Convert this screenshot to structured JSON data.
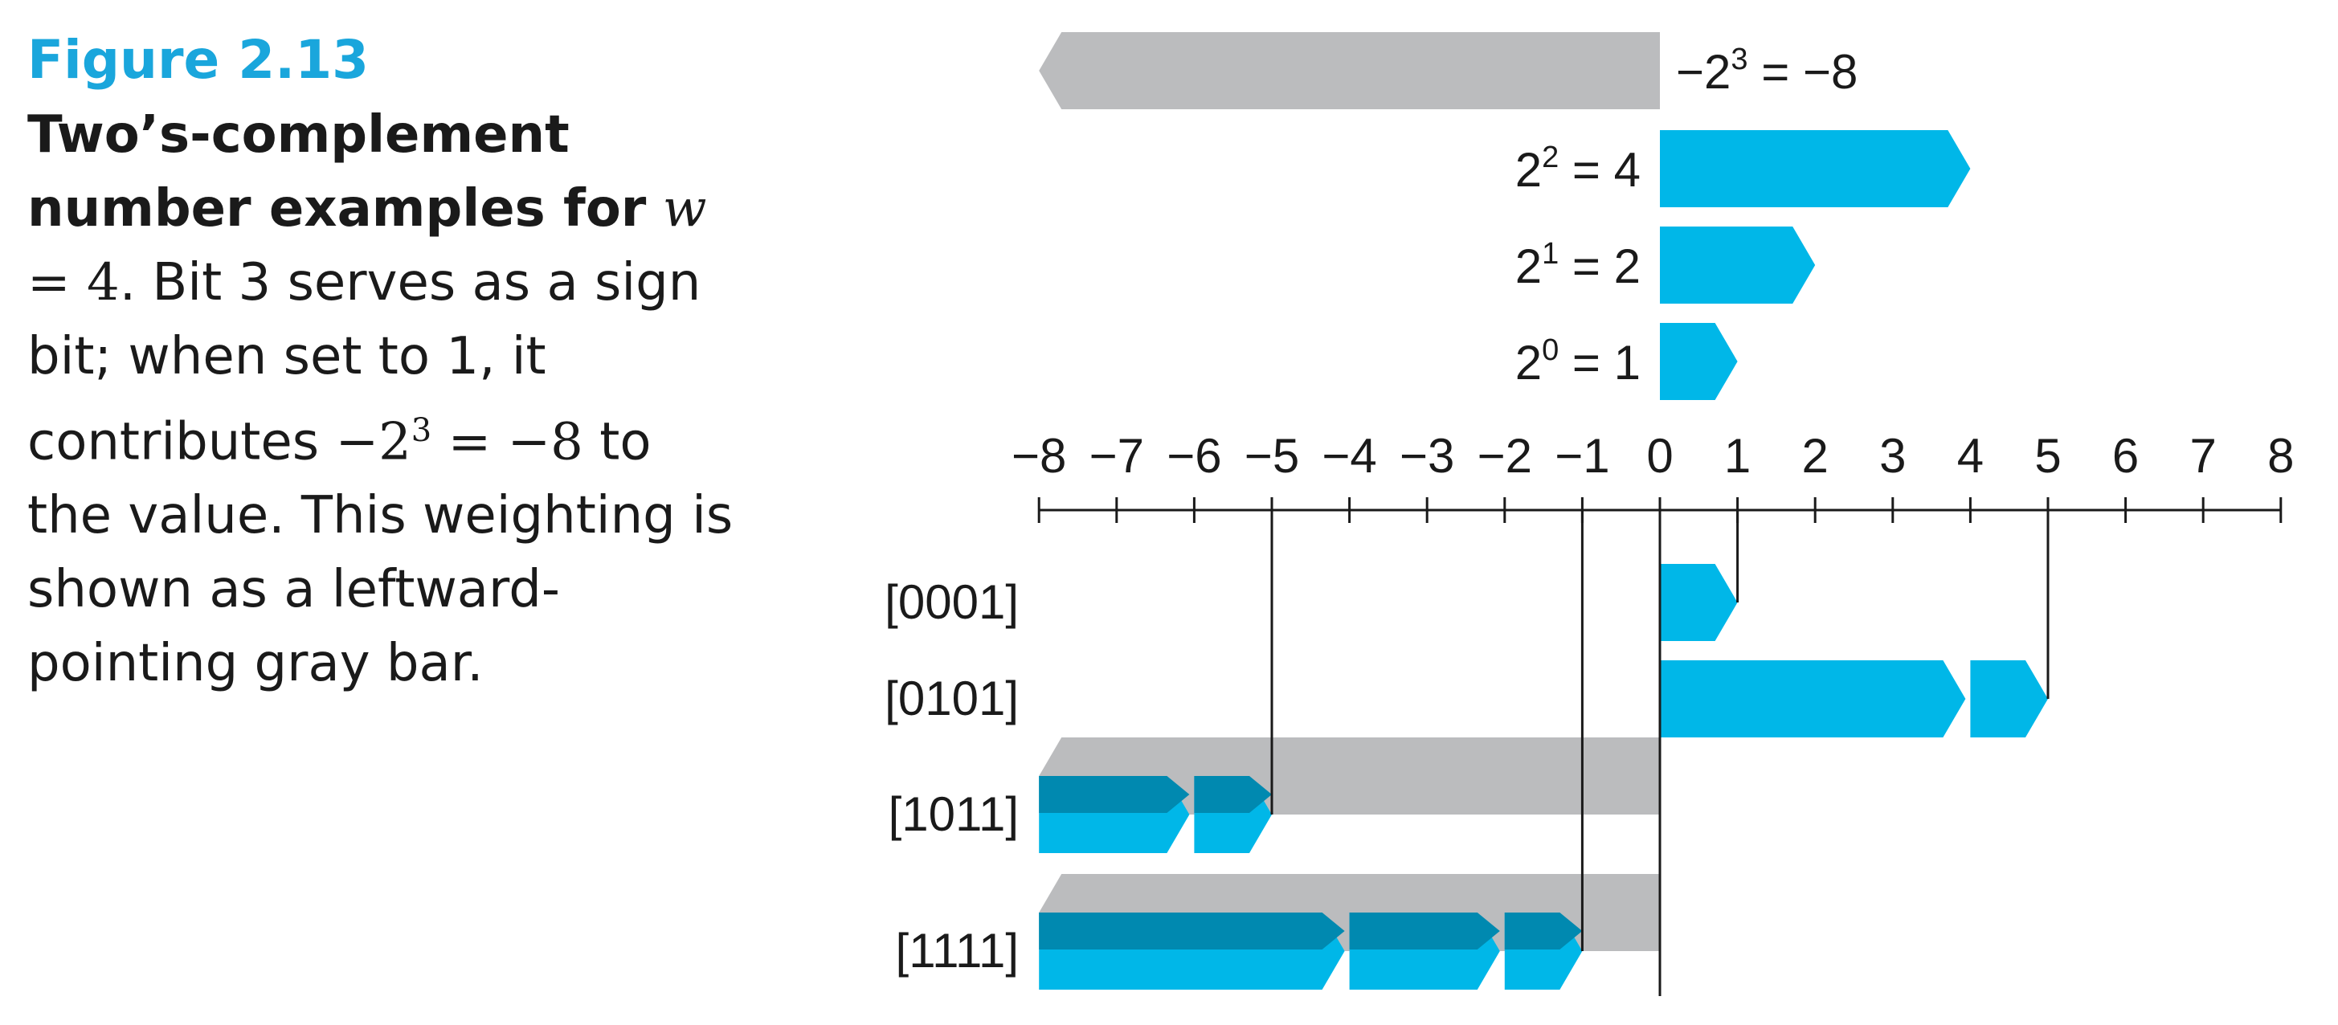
{
  "caption": {
    "figure_label": "Figure 2.13",
    "title": "Two’s-complement number examples for",
    "w_var": "w",
    "w_eq": " = 4",
    "text_1": ". Bit 3 serves as a sign bit; when set to 1, it contributes ",
    "math_minus": "−2",
    "math_sup": "3",
    "math_rest": " = −8",
    "text_2": " to the value. This weighting is shown as a leftward-pointing gray bar."
  },
  "weights": [
    {
      "base": "−2",
      "exp": "3",
      "rest": " = −8",
      "value": -8,
      "color": "gray"
    },
    {
      "base": "2",
      "exp": "2",
      "rest": " = 4",
      "value": 4,
      "color": "blue"
    },
    {
      "base": "2",
      "exp": "1",
      "rest": " = 2",
      "value": 2,
      "color": "blue"
    },
    {
      "base": "2",
      "exp": "0",
      "rest": " = 1",
      "value": 1,
      "color": "blue"
    }
  ],
  "axis": {
    "min": -8,
    "max": 8,
    "tick_labels": [
      "−8",
      "−7",
      "−6",
      "−5",
      "−4",
      "−3",
      "−2",
      "−1",
      "0",
      "1",
      "2",
      "3",
      "4",
      "5",
      "6",
      "7",
      "8"
    ]
  },
  "examples": [
    {
      "label": "[0001]",
      "bits": [
        0,
        0,
        0,
        1
      ],
      "value": 1
    },
    {
      "label": "[0101]",
      "bits": [
        0,
        1,
        0,
        1
      ],
      "value": 5
    },
    {
      "label": "[1011]",
      "bits": [
        1,
        0,
        1,
        1
      ],
      "value": -5
    },
    {
      "label": "[1111]",
      "bits": [
        1,
        1,
        1,
        1
      ],
      "value": -1
    }
  ],
  "colors": {
    "blue": "#00b7e8",
    "blue_dark": "#0089b0",
    "gray": "#bbbcbe",
    "accent": "#1aa6dc",
    "line": "#1a1a1a"
  }
}
